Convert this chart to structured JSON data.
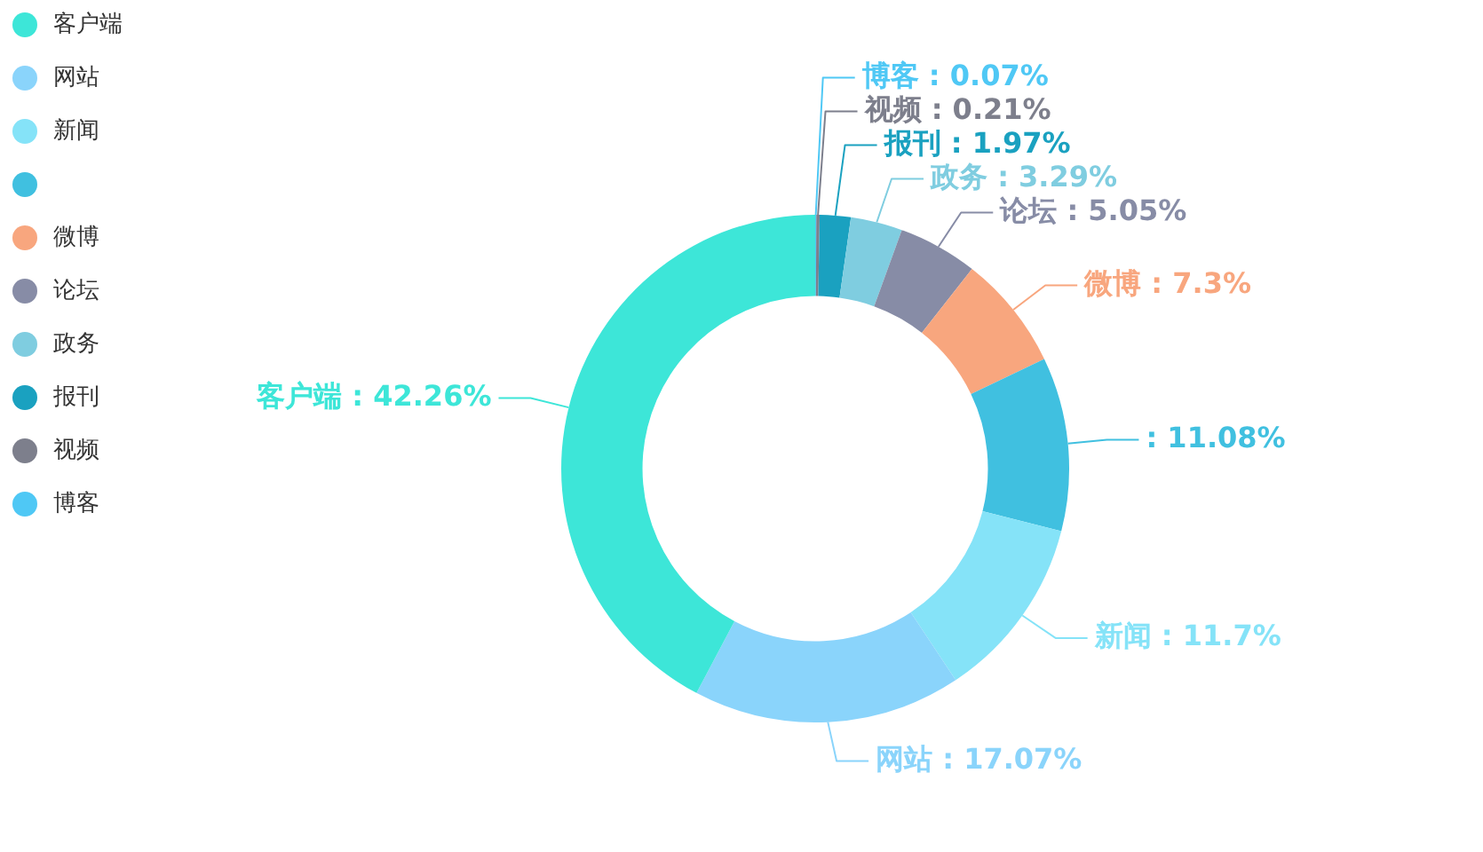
{
  "chart_data": {
    "type": "donut",
    "categories": [
      "客户端",
      "网站",
      "新闻",
      null,
      "微博",
      "论坛",
      "政务",
      "报刊",
      "视频",
      "博客"
    ],
    "values": [
      42.26,
      17.07,
      11.7,
      11.08,
      7.3,
      5.05,
      3.29,
      1.97,
      0.21,
      0.07
    ],
    "colors": [
      "#3de6d8",
      "#8ad4fb",
      "#85e3f8",
      "#40c0e0",
      "#f8a67e",
      "#878ca6",
      "#7fcde0",
      "#1aa1c0",
      "#7d7f8c",
      "#4fc8f5"
    ],
    "value_labels": [
      ": 42.26%",
      ": 17.07%",
      ": 11.7%",
      ": 11.08%",
      ": 7.3%",
      ": 5.05%",
      ": 3.29%",
      ": 1.97%",
      ": 0.21%",
      ": 0.07%"
    ],
    "legend": "top left"
  }
}
